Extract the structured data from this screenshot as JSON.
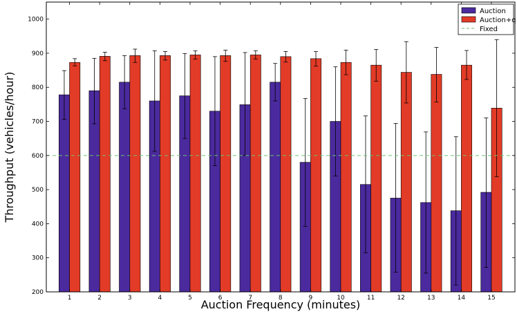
{
  "chart_data": {
    "type": "bar",
    "xlabel": "Auction Frequency (minutes)",
    "ylabel": "Throughput (vehicles/hour)",
    "ylim": [
      200,
      1050
    ],
    "yticks": [
      200,
      300,
      400,
      500,
      600,
      700,
      800,
      900,
      1000
    ],
    "grid": false,
    "legend_position": "top-right",
    "categories": [
      "1",
      "2",
      "3",
      "4",
      "5",
      "6",
      "7",
      "8",
      "9",
      "10",
      "11",
      "12",
      "13",
      "14",
      "15"
    ],
    "series": [
      {
        "name": "Auction",
        "color": "#4b2a9e",
        "values": [
          778,
          790,
          815,
          760,
          775,
          730,
          749,
          815,
          580,
          700,
          515,
          475,
          462,
          438,
          492
        ],
        "error_low": [
          706,
          693,
          737,
          612,
          650,
          570,
          600,
          760,
          392,
          540,
          315,
          258,
          255,
          220,
          272
        ],
        "error_high": [
          849,
          885,
          893,
          907,
          899,
          890,
          902,
          870,
          767,
          860,
          716,
          694,
          669,
          655,
          710
        ]
      },
      {
        "name": "Auction+q",
        "color": "#e23b27",
        "values": [
          873,
          891,
          893,
          893,
          895,
          893,
          895,
          890,
          884,
          873,
          865,
          844,
          838,
          865,
          739
        ],
        "error_low": [
          863,
          878,
          873,
          880,
          883,
          876,
          883,
          874,
          862,
          837,
          818,
          754,
          757,
          823,
          538
        ],
        "error_high": [
          884,
          903,
          912,
          905,
          907,
          909,
          907,
          905,
          905,
          909,
          911,
          934,
          917,
          908,
          940
        ]
      }
    ],
    "reference_lines": [
      {
        "name": "Fixed",
        "value": 600,
        "color": "#6cc26c",
        "style": "dashed"
      }
    ]
  }
}
